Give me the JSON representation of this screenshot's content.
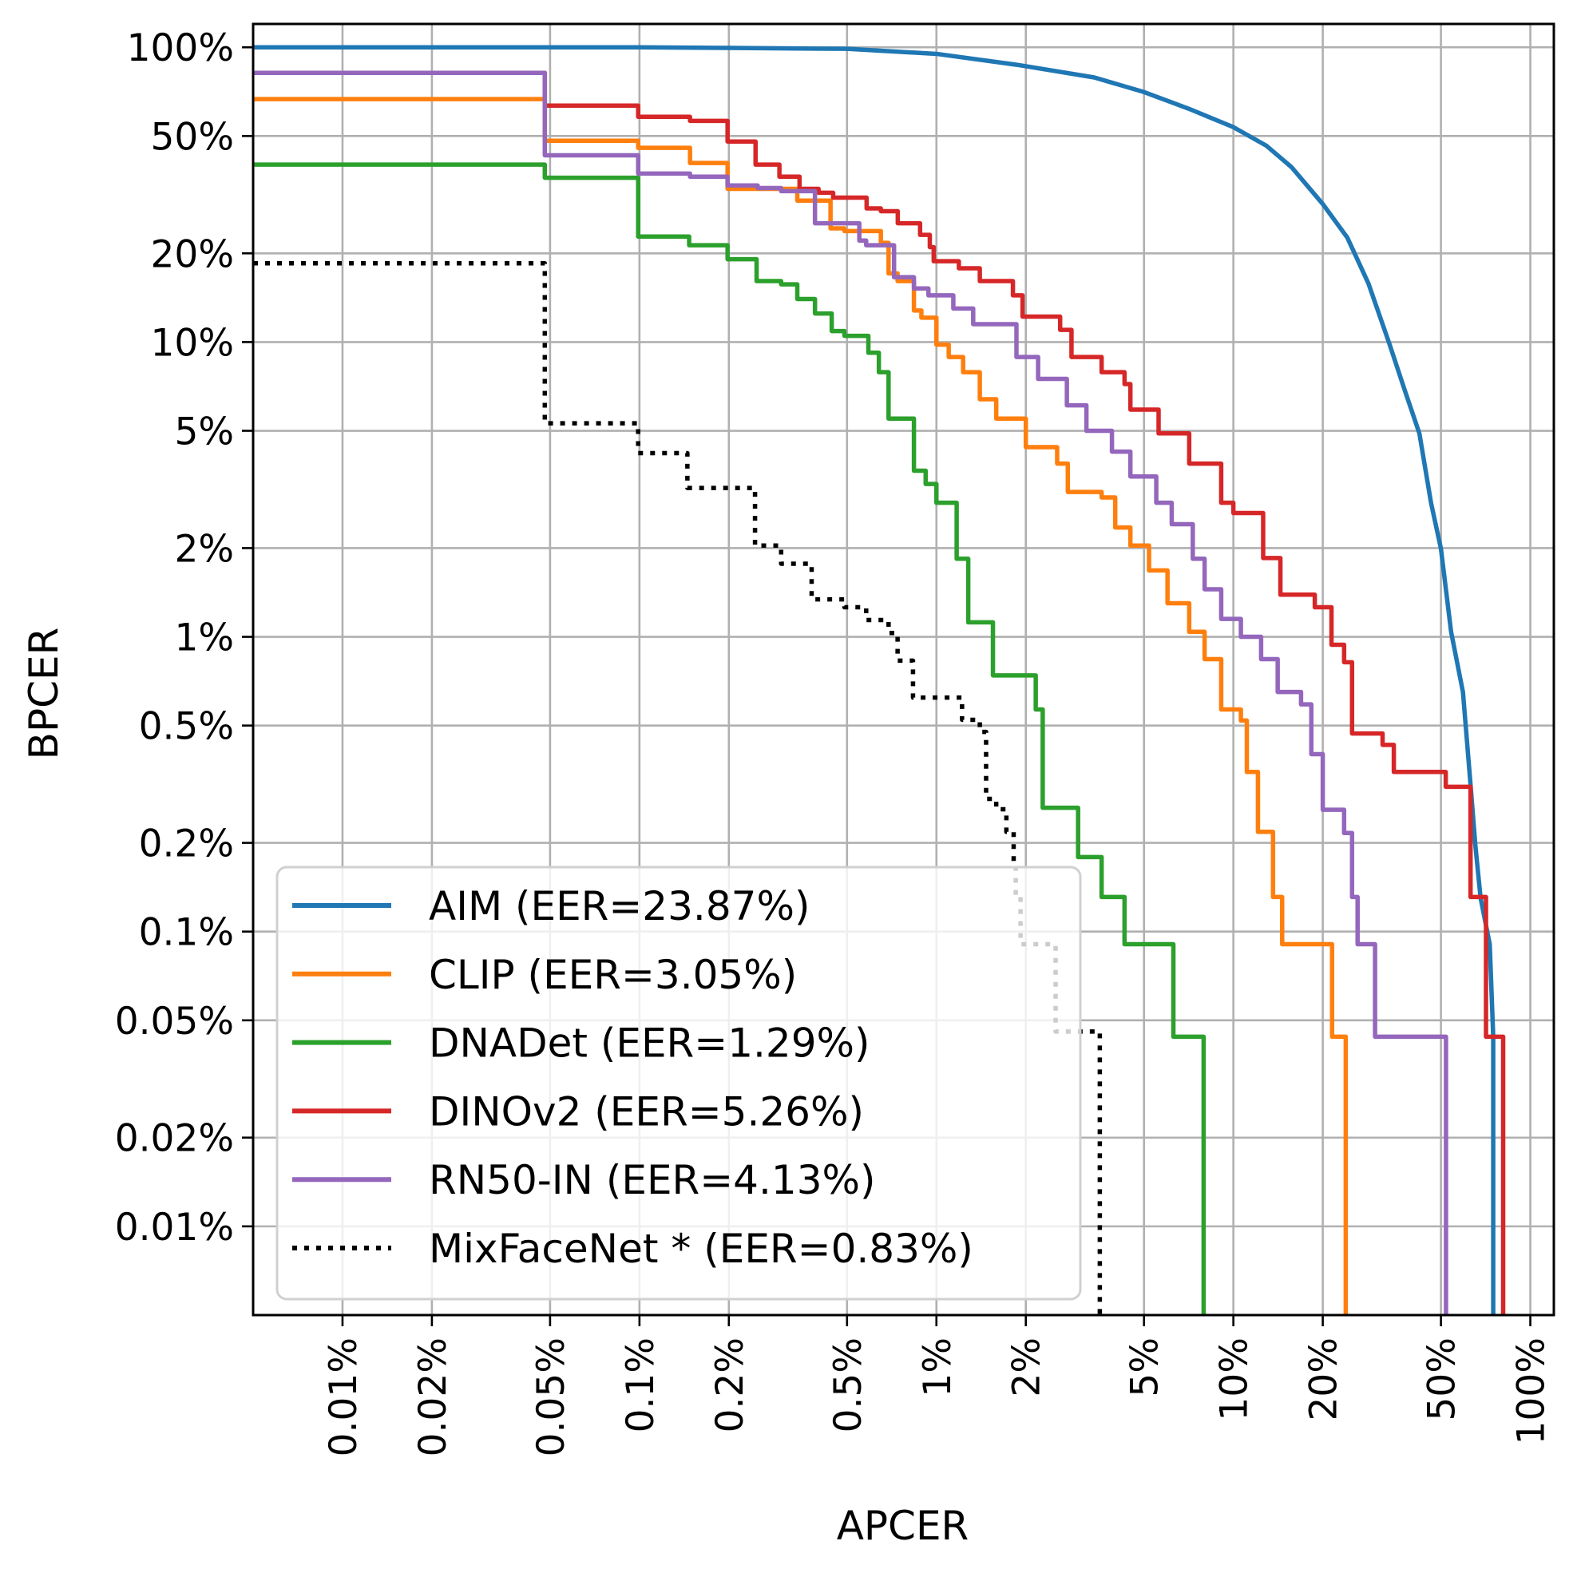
{
  "chart_data": {
    "type": "line",
    "title": "",
    "xlabel": "APCER",
    "ylabel": "BPCER",
    "xscale": "log",
    "yscale": "log",
    "units": "percent",
    "xlim": [
      0.005,
      120
    ],
    "ylim": [
      0.005,
      120
    ],
    "grid": true,
    "legend_position": "lower-left",
    "x_ticks": [
      {
        "value": 0.01,
        "label": "0.01%"
      },
      {
        "value": 0.02,
        "label": "0.02%"
      },
      {
        "value": 0.05,
        "label": "0.05%"
      },
      {
        "value": 0.1,
        "label": "0.1%"
      },
      {
        "value": 0.2,
        "label": "0.2%"
      },
      {
        "value": 0.5,
        "label": "0.5%"
      },
      {
        "value": 1,
        "label": "1%"
      },
      {
        "value": 2,
        "label": "2%"
      },
      {
        "value": 5,
        "label": "5%"
      },
      {
        "value": 10,
        "label": "10%"
      },
      {
        "value": 20,
        "label": "20%"
      },
      {
        "value": 50,
        "label": "50%"
      },
      {
        "value": 100,
        "label": "100%"
      }
    ],
    "y_ticks": [
      {
        "value": 100,
        "label": "100%"
      },
      {
        "value": 50,
        "label": "50%"
      },
      {
        "value": 20,
        "label": "20%"
      },
      {
        "value": 10,
        "label": "10%"
      },
      {
        "value": 5,
        "label": "5%"
      },
      {
        "value": 2,
        "label": "2%"
      },
      {
        "value": 1,
        "label": "1%"
      },
      {
        "value": 0.5,
        "label": "0.5%"
      },
      {
        "value": 0.2,
        "label": "0.2%"
      },
      {
        "value": 0.1,
        "label": "0.1%"
      },
      {
        "value": 0.05,
        "label": "0.05%"
      },
      {
        "value": 0.02,
        "label": "0.02%"
      },
      {
        "value": 0.01,
        "label": "0.01%"
      }
    ],
    "series": [
      {
        "name": "AIM",
        "legend": "AIM (EER=23.87%)",
        "eer": 23.87,
        "color": "#1f77b4",
        "style": "solid",
        "drawstyle": "line",
        "points": [
          [
            0.005,
            100
          ],
          [
            0.1,
            100
          ],
          [
            0.2,
            99.5
          ],
          [
            0.5,
            98.8
          ],
          [
            1.0,
            95
          ],
          [
            1.9,
            87
          ],
          [
            3.4,
            79
          ],
          [
            5.0,
            70.5
          ],
          [
            7.1,
            61.8
          ],
          [
            10,
            53.6
          ],
          [
            12.9,
            46.4
          ],
          [
            15.7,
            39.2
          ],
          [
            20,
            29.4
          ],
          [
            24.2,
            22.6
          ],
          [
            28.5,
            15.8
          ],
          [
            33.6,
            9.8
          ],
          [
            37.7,
            6.9
          ],
          [
            42.3,
            4.9
          ],
          [
            46.3,
            2.85
          ],
          [
            50,
            1.99
          ],
          [
            54.1,
            1.04
          ],
          [
            59.3,
            0.65
          ],
          [
            62.9,
            0.315
          ],
          [
            65.3,
            0.196
          ],
          [
            68,
            0.13
          ],
          [
            73,
            0.0906
          ],
          [
            75,
            0.044
          ],
          [
            75,
            0.005
          ]
        ]
      },
      {
        "name": "CLIP",
        "legend": "CLIP (EER=3.05%)",
        "eer": 3.05,
        "color": "#ff7f0e",
        "style": "solid",
        "drawstyle": "steps",
        "points": [
          [
            0.005,
            66.7
          ],
          [
            0.048,
            48.2
          ],
          [
            0.099,
            45.6
          ],
          [
            0.148,
            40.5
          ],
          [
            0.198,
            33.1
          ],
          [
            0.34,
            30.2
          ],
          [
            0.44,
            24.3
          ],
          [
            0.49,
            23.8
          ],
          [
            0.65,
            21.7
          ],
          [
            0.69,
            17.1
          ],
          [
            0.74,
            16.1
          ],
          [
            0.84,
            12.8
          ],
          [
            0.89,
            12.1
          ],
          [
            1.0,
            9.8
          ],
          [
            1.1,
            8.9
          ],
          [
            1.23,
            7.9
          ],
          [
            1.4,
            6.4
          ],
          [
            1.59,
            5.5
          ],
          [
            2.0,
            4.4
          ],
          [
            2.55,
            3.87
          ],
          [
            2.77,
            3.1
          ],
          [
            3.6,
            2.97
          ],
          [
            4.0,
            2.35
          ],
          [
            4.5,
            2.04
          ],
          [
            5.2,
            1.68
          ],
          [
            6.0,
            1.3
          ],
          [
            7.1,
            1.04
          ],
          [
            8.0,
            0.84
          ],
          [
            9.1,
            0.567
          ],
          [
            10.6,
            0.52
          ],
          [
            11.1,
            0.348
          ],
          [
            12.1,
            0.218
          ],
          [
            13.6,
            0.131
          ],
          [
            14.6,
            0.0906
          ],
          [
            21.5,
            0.044
          ],
          [
            23.9,
            0.005
          ]
        ]
      },
      {
        "name": "DNADet",
        "legend": "DNADet (EER=1.29%)",
        "eer": 1.29,
        "color": "#2ca02c",
        "style": "solid",
        "drawstyle": "steps",
        "points": [
          [
            0.005,
            40.0
          ],
          [
            0.048,
            36.1
          ],
          [
            0.099,
            22.8
          ],
          [
            0.147,
            21.3
          ],
          [
            0.198,
            19.1
          ],
          [
            0.248,
            16.1
          ],
          [
            0.3,
            15.7
          ],
          [
            0.34,
            14.0
          ],
          [
            0.39,
            12.5
          ],
          [
            0.444,
            10.9
          ],
          [
            0.49,
            10.5
          ],
          [
            0.59,
            9.2
          ],
          [
            0.64,
            7.9
          ],
          [
            0.69,
            5.5
          ],
          [
            0.84,
            3.66
          ],
          [
            0.92,
            3.3
          ],
          [
            1.0,
            2.85
          ],
          [
            1.17,
            1.84
          ],
          [
            1.28,
            1.12
          ],
          [
            1.55,
            0.74
          ],
          [
            2.16,
            0.567
          ],
          [
            2.28,
            0.263
          ],
          [
            3.0,
            0.179
          ],
          [
            3.6,
            0.131
          ],
          [
            4.3,
            0.0906
          ],
          [
            6.28,
            0.044
          ],
          [
            7.94,
            0.005
          ]
        ]
      },
      {
        "name": "DINOv2",
        "legend": "DINOv2 (EER=5.26%)",
        "eer": 5.26,
        "color": "#d62728",
        "style": "solid",
        "drawstyle": "steps",
        "points": [
          [
            0.005,
            81.9
          ],
          [
            0.048,
            63.4
          ],
          [
            0.099,
            58.1
          ],
          [
            0.148,
            56.3
          ],
          [
            0.198,
            47.9
          ],
          [
            0.246,
            40.0
          ],
          [
            0.296,
            36.4
          ],
          [
            0.346,
            33.1
          ],
          [
            0.401,
            32.1
          ],
          [
            0.449,
            30.9
          ],
          [
            0.582,
            28.4
          ],
          [
            0.65,
            27.8
          ],
          [
            0.741,
            25.3
          ],
          [
            0.881,
            23.1
          ],
          [
            0.95,
            21.0
          ],
          [
            0.979,
            18.8
          ],
          [
            1.19,
            17.8
          ],
          [
            1.4,
            16.1
          ],
          [
            1.81,
            14.4
          ],
          [
            1.95,
            12.2
          ],
          [
            2.61,
            11.0
          ],
          [
            2.85,
            8.9
          ],
          [
            3.6,
            7.9
          ],
          [
            4.3,
            7.2
          ],
          [
            4.5,
            5.9
          ],
          [
            5.6,
            4.9
          ],
          [
            7.1,
            3.87
          ],
          [
            9.1,
            2.85
          ],
          [
            10.0,
            2.63
          ],
          [
            12.6,
            1.85
          ],
          [
            14.4,
            1.39
          ],
          [
            18.8,
            1.26
          ],
          [
            21.4,
            0.94
          ],
          [
            23.6,
            0.82
          ],
          [
            25.1,
            0.47
          ],
          [
            31.8,
            0.43
          ],
          [
            34.7,
            0.348
          ],
          [
            51.9,
            0.31
          ],
          [
            62.9,
            0.131
          ],
          [
            70.9,
            0.044
          ],
          [
            81.0,
            0.005
          ]
        ]
      },
      {
        "name": "RN50-IN",
        "legend": "RN50-IN (EER=4.13%)",
        "eer": 4.13,
        "color": "#9467bd",
        "style": "solid",
        "drawstyle": "steps",
        "points": [
          [
            0.005,
            81.9
          ],
          [
            0.048,
            43.0
          ],
          [
            0.099,
            37.3
          ],
          [
            0.148,
            36.4
          ],
          [
            0.198,
            34.0
          ],
          [
            0.25,
            33.3
          ],
          [
            0.3,
            32.5
          ],
          [
            0.39,
            25.3
          ],
          [
            0.55,
            22.1
          ],
          [
            0.58,
            21.3
          ],
          [
            0.72,
            16.6
          ],
          [
            0.84,
            15.2
          ],
          [
            0.94,
            14.4
          ],
          [
            1.14,
            13.0
          ],
          [
            1.33,
            11.5
          ],
          [
            1.86,
            8.9
          ],
          [
            2.2,
            7.5
          ],
          [
            2.75,
            6.1
          ],
          [
            3.2,
            5.0
          ],
          [
            3.9,
            4.25
          ],
          [
            4.5,
            3.5
          ],
          [
            5.5,
            2.85
          ],
          [
            6.2,
            2.41
          ],
          [
            7.3,
            1.84
          ],
          [
            8.0,
            1.45
          ],
          [
            9.1,
            1.15
          ],
          [
            10.6,
            1.0
          ],
          [
            12.4,
            0.84
          ],
          [
            14.1,
            0.65
          ],
          [
            16.9,
            0.59
          ],
          [
            18.3,
            0.4
          ],
          [
            20.0,
            0.259
          ],
          [
            23.6,
            0.216
          ],
          [
            25.1,
            0.131
          ],
          [
            26.2,
            0.0906
          ],
          [
            30.0,
            0.044
          ],
          [
            52.0,
            0.005
          ]
        ]
      },
      {
        "name": "MixFaceNet *",
        "legend": "MixFaceNet * (EER=0.83%)",
        "eer": 0.83,
        "color": "#000000",
        "style": "dotted",
        "drawstyle": "steps",
        "points": [
          [
            0.005,
            18.5
          ],
          [
            0.048,
            5.3
          ],
          [
            0.099,
            4.2
          ],
          [
            0.145,
            3.2
          ],
          [
            0.245,
            2.04
          ],
          [
            0.3,
            1.77
          ],
          [
            0.38,
            1.34
          ],
          [
            0.49,
            1.26
          ],
          [
            0.58,
            1.14
          ],
          [
            0.69,
            1.03
          ],
          [
            0.74,
            0.83
          ],
          [
            0.834,
            0.622
          ],
          [
            1.22,
            0.523
          ],
          [
            1.4,
            0.476
          ],
          [
            1.47,
            0.282
          ],
          [
            1.59,
            0.26
          ],
          [
            1.72,
            0.218
          ],
          [
            1.82,
            0.171
          ],
          [
            1.85,
            0.131
          ],
          [
            1.92,
            0.0906
          ],
          [
            2.52,
            0.0458
          ],
          [
            3.55,
            0.005
          ]
        ]
      }
    ]
  }
}
